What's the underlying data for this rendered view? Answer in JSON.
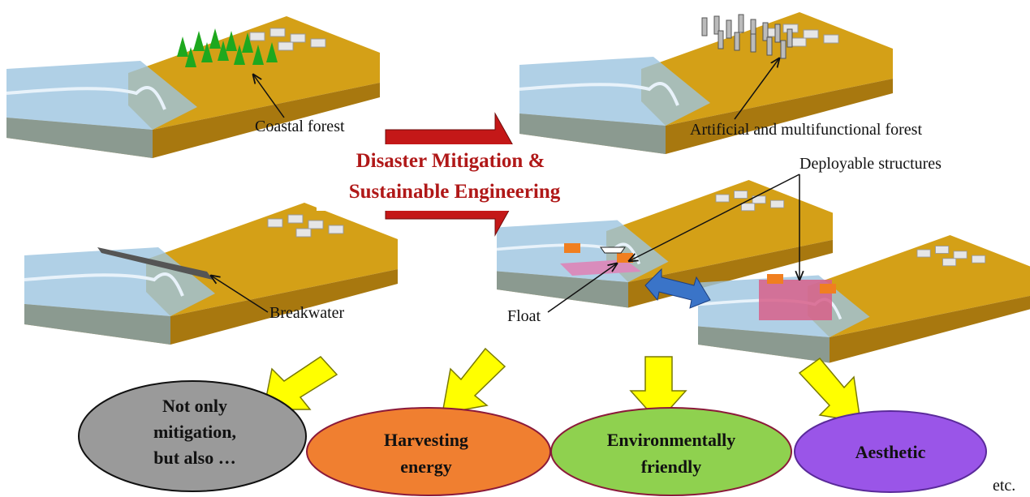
{
  "labels": {
    "coastal_forest": "Coastal forest",
    "artificial_forest": "Artificial and multifunctional forest",
    "deployable": "Deployable structures",
    "breakwater": "Breakwater",
    "float": "Float",
    "etc": "etc."
  },
  "title": {
    "lines": [
      "Disaster Mitigation &",
      "Sustainable Engineering"
    ]
  },
  "benefits": [
    {
      "lines": [
        "Not only",
        "mitigation,",
        "but also …"
      ]
    },
    {
      "lines": [
        "Harvesting",
        "energy"
      ]
    },
    {
      "lines": [
        "Environmentally",
        "friendly"
      ]
    },
    {
      "lines": [
        "Aesthetic"
      ]
    }
  ]
}
